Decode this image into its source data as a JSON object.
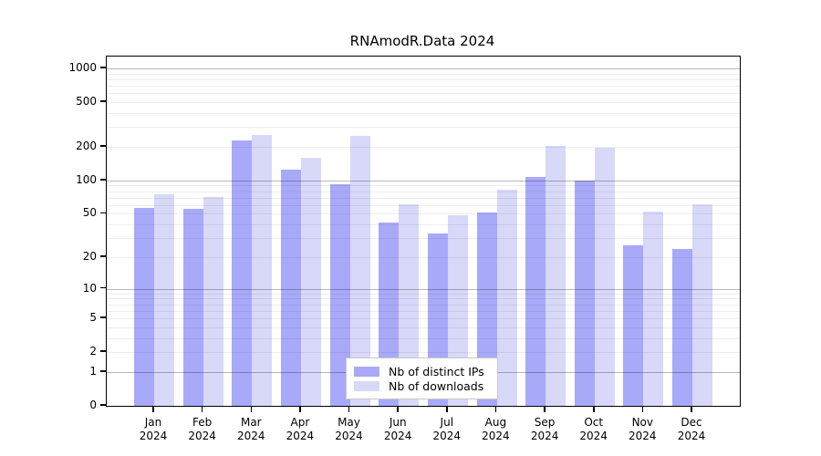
{
  "title": "RNAmodR.Data 2024",
  "legend": {
    "items": [
      {
        "label": "Nb of distinct IPs"
      },
      {
        "label": "Nb of downloads"
      }
    ]
  },
  "chart_data": {
    "type": "bar",
    "title": "RNAmodR.Data 2024",
    "categories": [
      "Jan",
      "Feb",
      "Mar",
      "Apr",
      "May",
      "Jun",
      "Jul",
      "Aug",
      "Sep",
      "Oct",
      "Nov",
      "Dec"
    ],
    "category_year": "2024",
    "series": [
      {
        "name": "Nb of distinct IPs",
        "color": "#a9a9f9",
        "values": [
          57,
          55,
          230,
          126,
          92,
          42,
          33,
          51,
          107,
          100,
          26,
          24
        ]
      },
      {
        "name": "Nb of downloads",
        "color": "#d8d8f9",
        "values": [
          75,
          71,
          255,
          160,
          250,
          61,
          49,
          82,
          205,
          197,
          52,
          61
        ]
      }
    ],
    "yscale": "log1p",
    "ylim": [
      0,
      1000
    ],
    "yticks": [
      0,
      1,
      2,
      5,
      10,
      20,
      50,
      100,
      200,
      500,
      1000
    ],
    "major_gridlines": [
      1,
      10,
      100,
      1000
    ],
    "minor_gridlines": [
      2,
      3,
      4,
      5,
      6,
      7,
      8,
      9,
      20,
      30,
      40,
      50,
      60,
      70,
      80,
      90,
      200,
      300,
      400,
      500,
      600,
      700,
      800,
      900
    ],
    "grid": true,
    "legend_position": "bottom-center",
    "xlabel": "",
    "ylabel": ""
  }
}
